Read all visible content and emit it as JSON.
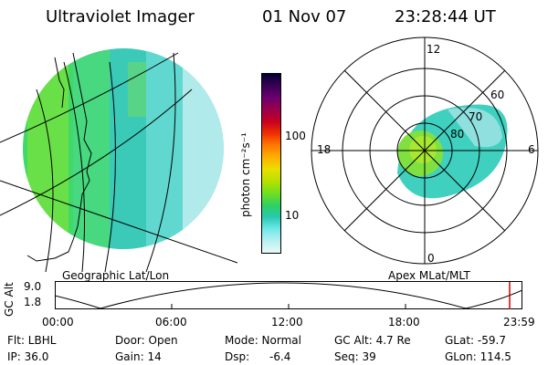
{
  "header": {
    "instrument": "Ultraviolet Imager",
    "date": "01 Nov 07",
    "time": "23:28:44 UT"
  },
  "geo_panel": {
    "caption": "Geographic Lat/Lon"
  },
  "colorbar": {
    "unit_label": "photon cm⁻²s⁻¹",
    "ticks": [
      "100",
      "10"
    ],
    "colors": [
      "#000033",
      "#3b0055",
      "#6a006e",
      "#9a004a",
      "#c80020",
      "#ee3000",
      "#ff7a00",
      "#ffb000",
      "#e8e000",
      "#b8e000",
      "#70e020",
      "#30d060",
      "#28c8b0",
      "#70e8e8",
      "#b8f0f0",
      "#e8f8f8"
    ]
  },
  "polar_panel": {
    "caption": "Apex MLat/MLT",
    "mlt_labels": {
      "top": "12",
      "left": "18",
      "right": "6",
      "bottom": "0"
    },
    "lat_labels": [
      "60",
      "70",
      "80"
    ]
  },
  "altitude_plot": {
    "axis_title": "GC Alt",
    "y_ticks": [
      "9.0",
      "1.8"
    ],
    "x_ticks": [
      "00:00",
      "06:00",
      "12:00",
      "18:00",
      "23:59"
    ],
    "current_marker_color": "#cc0000"
  },
  "info": {
    "row1": {
      "filter": "Flt: LBHL",
      "door": "Door: Open",
      "mode": "Mode: Normal",
      "gc_alt": "GC Alt: 4.7 Re",
      "glat": "GLat: -59.7"
    },
    "row2": {
      "ip": "IP: 36.0",
      "gain": "Gain: 14",
      "dsp_label": "Dsp:",
      "dsp_value": "-6.4",
      "seq": "Seq: 39",
      "glon": "GLon: 114.5"
    }
  }
}
